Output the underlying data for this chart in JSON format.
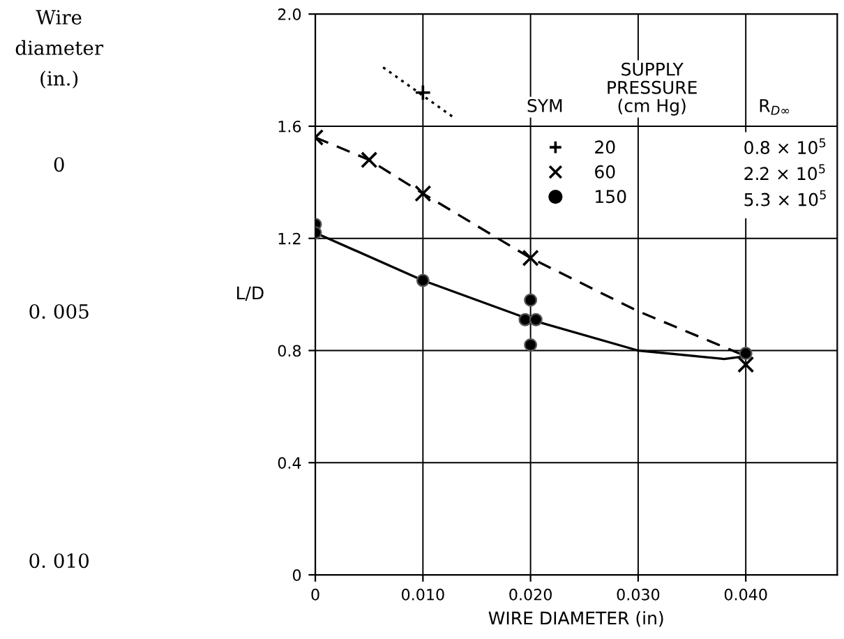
{
  "chart_data": {
    "type": "scatter",
    "xlabel": "WIRE DIAMETER (in)",
    "ylabel": "L/D",
    "xlim": [
      0,
      0.0485
    ],
    "ylim": [
      0,
      2.0
    ],
    "xticks": [
      0,
      {
        "value": 0.01,
        "label": "0.010"
      },
      {
        "value": 0.02,
        "label": "0.020"
      },
      {
        "value": 0.03,
        "label": "0.030"
      },
      {
        "value": 0.04,
        "label": "0.040"
      }
    ],
    "yticks": [
      0,
      0.4,
      0.8,
      1.2,
      1.6,
      {
        "value": 2,
        "label": "2.0"
      }
    ],
    "grid": true,
    "legend": "top right",
    "series": [
      {
        "name": "20",
        "color": "#000000",
        "marker": "plus",
        "x": [
          0.01
        ],
        "values": [
          1.72
        ]
      },
      {
        "name": "60",
        "color": "#000000",
        "marker": "cross",
        "x": [
          0,
          0.005,
          0.01,
          0.02,
          0.04
        ],
        "values": [
          1.56,
          1.48,
          1.36,
          1.13,
          0.75
        ]
      },
      {
        "name": "150",
        "color": "#000000",
        "marker": "circle",
        "x": [
          0,
          0,
          0.01,
          0.0195,
          0.0205,
          0.02,
          0.02,
          0.04
        ],
        "values": [
          1.25,
          1.22,
          1.05,
          0.91,
          0.91,
          0.98,
          0.82,
          0.79
        ]
      },
      {
        "type": "line",
        "color": "#000000",
        "line_style": "dotted",
        "x": [
          0.0063,
          0.0129
        ],
        "values": [
          1.81,
          1.63
        ]
      },
      {
        "type": "line",
        "color": "#000000",
        "line_style": "dashed",
        "x": [
          0,
          0.005,
          0.01,
          0.02,
          0.03,
          0.04
        ],
        "values": [
          1.56,
          1.48,
          1.36,
          1.13,
          0.94,
          0.78
        ]
      },
      {
        "type": "line",
        "color": "#000000",
        "line_style": "solid",
        "x": [
          0,
          0.01,
          0.02,
          0.03,
          0.038,
          0.04
        ],
        "values": [
          1.22,
          1.05,
          0.91,
          0.8,
          0.77,
          0.78
        ]
      }
    ],
    "annotations": [
      "Wire\ndiameter\n(in.)",
      "0",
      "0. 005",
      "0. 010",
      "SYM",
      "SUPPLY\nPRESSURE\n(cm Hg)",
      "R$_{D∞}$",
      "0.8 × 10$^{5}$",
      "2.2 × 10$^{5}$",
      "5.3 × 10$^{5}$"
    ]
  }
}
